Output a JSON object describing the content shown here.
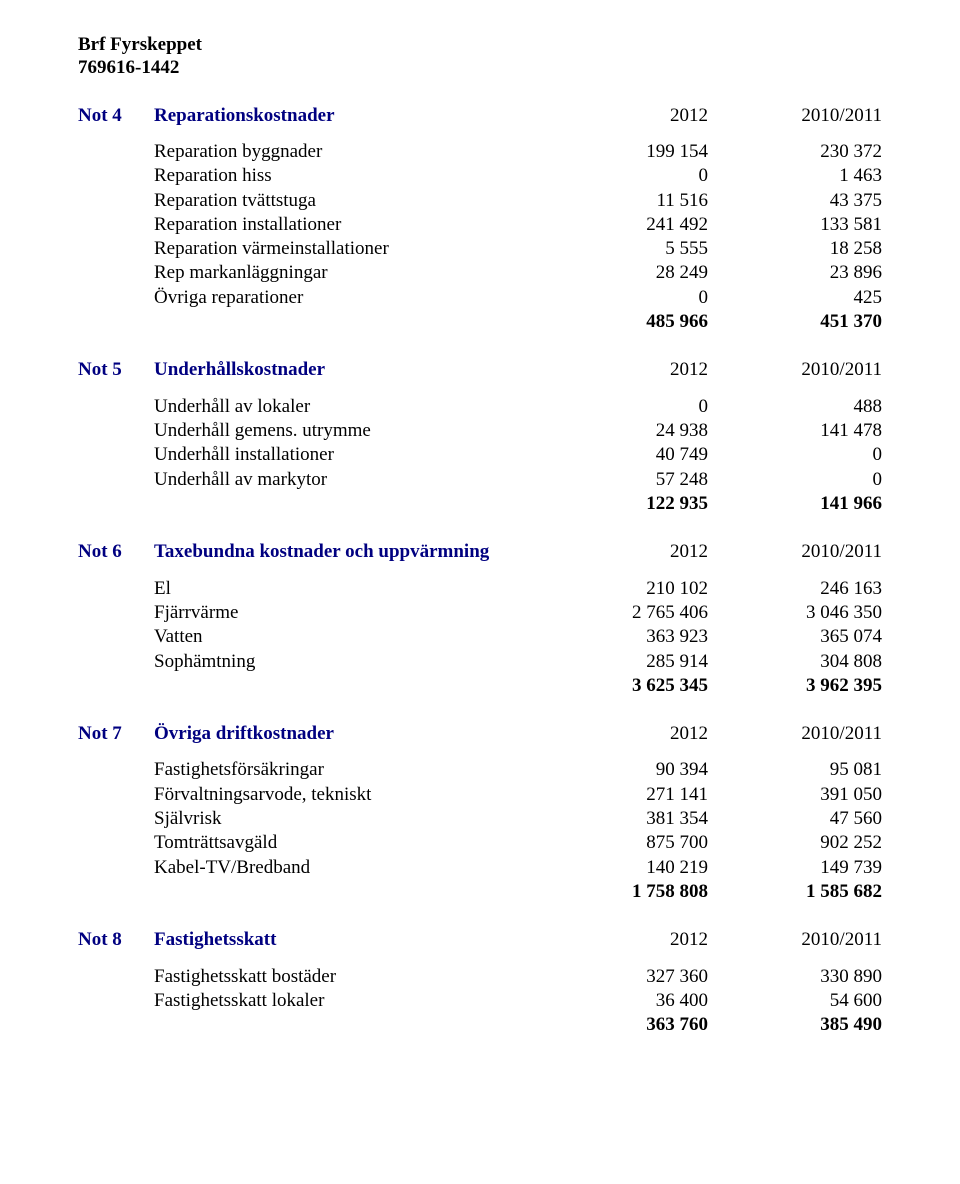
{
  "header": {
    "name": "Brf Fyrskeppet",
    "orgnr": "769616-1442"
  },
  "text_color": "#000000",
  "blue_color": "#000080",
  "notes": [
    {
      "id": "Not 4",
      "title": "Reparationskostnader",
      "col1_header": "2012",
      "col2_header": "2010/2011",
      "rows": [
        {
          "label": "Reparation byggnader",
          "c1": "199 154",
          "c2": "230 372"
        },
        {
          "label": "Reparation hiss",
          "c1": "0",
          "c2": "1 463"
        },
        {
          "label": "Reparation tvättstuga",
          "c1": "11 516",
          "c2": "43 375"
        },
        {
          "label": "Reparation installationer",
          "c1": "241 492",
          "c2": "133 581"
        },
        {
          "label": "Reparation värmeinstallationer",
          "c1": "5 555",
          "c2": "18 258"
        },
        {
          "label": "Rep markanläggningar",
          "c1": "28 249",
          "c2": "23 896"
        },
        {
          "label": "Övriga reparationer",
          "c1": "0",
          "c2": "425"
        }
      ],
      "total": {
        "c1": "485 966",
        "c2": "451 370"
      }
    },
    {
      "id": "Not 5",
      "title": "Underhållskostnader",
      "col1_header": "2012",
      "col2_header": "2010/2011",
      "rows": [
        {
          "label": "Underhåll av lokaler",
          "c1": "0",
          "c2": "488"
        },
        {
          "label": "Underhåll gemens. utrymme",
          "c1": "24 938",
          "c2": "141 478"
        },
        {
          "label": "Underhåll installationer",
          "c1": "40 749",
          "c2": "0"
        },
        {
          "label": "Underhåll av markytor",
          "c1": "57 248",
          "c2": "0"
        }
      ],
      "total": {
        "c1": "122 935",
        "c2": "141 966"
      }
    },
    {
      "id": "Not 6",
      "title": "Taxebundna kostnader och uppvärmning",
      "col1_header": "2012",
      "col2_header": "2010/2011",
      "rows": [
        {
          "label": "El",
          "c1": "210 102",
          "c2": "246 163"
        },
        {
          "label": "Fjärrvärme",
          "c1": "2 765 406",
          "c2": "3 046 350"
        },
        {
          "label": "Vatten",
          "c1": "363 923",
          "c2": "365 074"
        },
        {
          "label": "Sophämtning",
          "c1": "285 914",
          "c2": "304 808"
        }
      ],
      "total": {
        "c1": "3 625 345",
        "c2": "3 962 395"
      }
    },
    {
      "id": "Not 7",
      "title": "Övriga driftkostnader",
      "col1_header": "2012",
      "col2_header": "2010/2011",
      "rows": [
        {
          "label": "Fastighetsförsäkringar",
          "c1": "90 394",
          "c2": "95 081"
        },
        {
          "label": "Förvaltningsarvode, tekniskt",
          "c1": "271 141",
          "c2": "391 050"
        },
        {
          "label": "Självrisk",
          "c1": "381 354",
          "c2": "47 560"
        },
        {
          "label": "Tomträttsavgäld",
          "c1": "875 700",
          "c2": "902 252"
        },
        {
          "label": "Kabel-TV/Bredband",
          "c1": "140 219",
          "c2": "149 739"
        }
      ],
      "total": {
        "c1": "1 758 808",
        "c2": "1 585 682"
      }
    },
    {
      "id": "Not 8",
      "title": "Fastighetsskatt",
      "col1_header": "2012",
      "col2_header": "2010/2011",
      "rows": [
        {
          "label": "Fastighetsskatt bostäder",
          "c1": "327 360",
          "c2": "330 890"
        },
        {
          "label": "Fastighetsskatt lokaler",
          "c1": "36 400",
          "c2": "54 600"
        }
      ],
      "total": {
        "c1": "363 760",
        "c2": "385 490"
      }
    }
  ]
}
